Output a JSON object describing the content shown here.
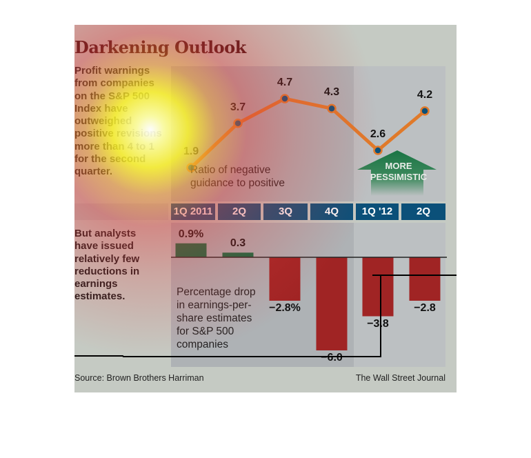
{
  "title": "Darkening Outlook",
  "intro_text": [
    "Profit warnings",
    "from companies",
    "on the S&P 500",
    "Index have",
    "outweighed",
    "positive revisions",
    "more than 4 to 1",
    "for the second",
    "quarter."
  ],
  "analysts_text": [
    "But analysts",
    "have issued",
    "relatively few",
    "reductions in",
    "earnings",
    "estimates."
  ],
  "line_note": [
    "Ratio of negative",
    "guidance to positive"
  ],
  "bar_note": [
    "Percentage drop",
    "in earnings-per-",
    "share estimates",
    "for S&P 500",
    "companies"
  ],
  "arrow_label": [
    "MORE",
    "PESSIMISTIC"
  ],
  "source": "Source: Brown Brothers Harriman",
  "credit": "The Wall Street Journal",
  "colors": {
    "line": "#e07a2a",
    "marker": "#0b5079",
    "category_bg": "#0b5079",
    "positive_bar": "#0a6b40",
    "negative_bar": "#a02424",
    "arrow": "#1f7a45"
  },
  "chart_data": [
    {
      "type": "line",
      "title": "Ratio of negative guidance to positive",
      "categories": [
        "1Q 2011",
        "2Q",
        "3Q",
        "4Q",
        "1Q '12",
        "2Q"
      ],
      "values": [
        1.9,
        3.7,
        4.7,
        4.3,
        2.6,
        4.2
      ],
      "labels": [
        "1.9",
        "3.7",
        "4.7",
        "4.3",
        "2.6",
        "4.2"
      ],
      "annotation": "MORE PESSIMISTIC",
      "grid": false
    },
    {
      "type": "bar",
      "title": "Percentage drop in earnings-per-share estimates for S&P 500 companies",
      "categories": [
        "1Q 2011",
        "2Q",
        "3Q",
        "4Q",
        "1Q '12",
        "2Q"
      ],
      "values": [
        0.9,
        0.3,
        -2.8,
        -6.0,
        -3.8,
        -2.8
      ],
      "labels": [
        "0.9%",
        "0.3",
        "−2.8%",
        "−6.0",
        "−3.8",
        "−2.8"
      ],
      "ylim": [
        -6.0,
        0.9
      ],
      "grid": false
    }
  ]
}
